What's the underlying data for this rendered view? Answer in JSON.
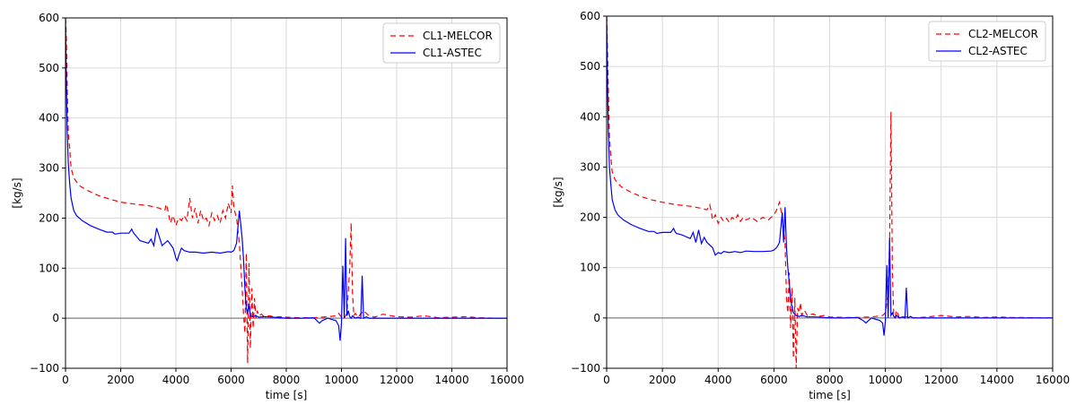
{
  "chart_data": [
    {
      "type": "line",
      "xlabel": "time [s]",
      "ylabel": "[kg/s]",
      "xlim": [
        0,
        16000
      ],
      "ylim": [
        -100,
        600
      ],
      "xticks": [
        0,
        2000,
        4000,
        6000,
        8000,
        10000,
        12000,
        14000,
        16000
      ],
      "yticks": [
        -100,
        0,
        100,
        200,
        300,
        400,
        500,
        600
      ],
      "grid": true,
      "legend_position": "top-right",
      "zero_line": true,
      "series": [
        {
          "name": "CL1-MELCOR",
          "color": "#ff0000",
          "style": "dashed",
          "x": [
            0,
            30,
            60,
            100,
            150,
            200,
            300,
            500,
            800,
            1200,
            1600,
            2000,
            2500,
            3000,
            3400,
            3600,
            3650,
            3700,
            3800,
            3900,
            4000,
            4100,
            4200,
            4300,
            4400,
            4500,
            4600,
            4700,
            4800,
            4900,
            5000,
            5100,
            5200,
            5300,
            5400,
            5500,
            5600,
            5700,
            5800,
            5900,
            6000,
            6050,
            6100,
            6200,
            6300,
            6400,
            6450,
            6500,
            6550,
            6600,
            6650,
            6700,
            6750,
            6800,
            6850,
            6900,
            6950,
            7000,
            7100,
            7200,
            7400,
            7600,
            7800,
            8000,
            8500,
            9000,
            9500,
            9800,
            9900,
            10000,
            10100,
            10200,
            10300,
            10350,
            10400,
            10450,
            10500,
            10600,
            10800,
            11000,
            11200,
            11500,
            12000,
            12500,
            13000,
            13500,
            14000,
            14500,
            15000,
            15500,
            16000
          ],
          "y": [
            600,
            560,
            470,
            370,
            340,
            300,
            280,
            265,
            255,
            245,
            238,
            232,
            228,
            225,
            220,
            215,
            228,
            218,
            190,
            205,
            185,
            200,
            195,
            205,
            195,
            240,
            200,
            220,
            190,
            215,
            195,
            200,
            185,
            210,
            195,
            205,
            190,
            215,
            200,
            230,
            210,
            265,
            220,
            200,
            150,
            60,
            10,
            -30,
            130,
            -90,
            110,
            -60,
            60,
            -20,
            40,
            0,
            15,
            5,
            8,
            3,
            5,
            2,
            3,
            2,
            1,
            1,
            3,
            5,
            10,
            2,
            0,
            10,
            100,
            190,
            50,
            5,
            10,
            2,
            15,
            5,
            2,
            8,
            3,
            2,
            5,
            1,
            2,
            3,
            1,
            0,
            0
          ]
        },
        {
          "name": "CL1-ASTEC",
          "color": "#0000ff",
          "style": "solid",
          "x": [
            0,
            30,
            60,
            100,
            150,
            200,
            300,
            400,
            600,
            900,
            1200,
            1500,
            1700,
            1800,
            2000,
            2300,
            2400,
            2450,
            2500,
            2700,
            3000,
            3100,
            3200,
            3300,
            3500,
            3700,
            3800,
            3900,
            3950,
            4000,
            4050,
            4100,
            4200,
            4300,
            4500,
            4700,
            5000,
            5300,
            5600,
            5900,
            6000,
            6100,
            6200,
            6300,
            6400,
            6450,
            6500,
            6550,
            6600,
            6650,
            6700,
            6800,
            6900,
            7000,
            7200,
            7500,
            8000,
            8500,
            9000,
            9200,
            9300,
            9500,
            9800,
            9900,
            9950,
            10000,
            10050,
            10100,
            10150,
            10200,
            10250,
            10300,
            10350,
            10400,
            10500,
            10600,
            10700,
            10750,
            10800,
            10900,
            11000,
            11500,
            12000,
            13000,
            14000,
            15000,
            16000
          ],
          "y": [
            600,
            480,
            380,
            310,
            270,
            240,
            215,
            205,
            195,
            185,
            178,
            172,
            172,
            168,
            170,
            170,
            178,
            172,
            168,
            155,
            150,
            158,
            145,
            180,
            145,
            155,
            148,
            140,
            130,
            120,
            115,
            125,
            140,
            135,
            132,
            132,
            130,
            132,
            130,
            133,
            132,
            135,
            150,
            215,
            160,
            120,
            60,
            20,
            10,
            30,
            5,
            3,
            5,
            2,
            3,
            2,
            0,
            0,
            1,
            -10,
            -5,
            0,
            -5,
            -15,
            -45,
            -10,
            105,
            0,
            160,
            5,
            15,
            3,
            0,
            5,
            0,
            2,
            0,
            85,
            0,
            3,
            0,
            0,
            0,
            0,
            0,
            0,
            0
          ]
        }
      ]
    },
    {
      "type": "line",
      "xlabel": "time [s]",
      "ylabel": "[kg/s]",
      "xlim": [
        0,
        16000
      ],
      "ylim": [
        -100,
        600
      ],
      "xticks": [
        0,
        2000,
        4000,
        6000,
        8000,
        10000,
        12000,
        14000,
        16000
      ],
      "yticks": [
        -100,
        0,
        100,
        200,
        300,
        400,
        500,
        600
      ],
      "grid": true,
      "legend_position": "top-right",
      "zero_line": true,
      "series": [
        {
          "name": "CL2-MELCOR",
          "color": "#ff0000",
          "style": "dashed",
          "x": [
            0,
            30,
            60,
            100,
            150,
            200,
            300,
            500,
            800,
            1200,
            1600,
            2000,
            2500,
            3000,
            3400,
            3600,
            3700,
            3750,
            3800,
            3900,
            4000,
            4100,
            4200,
            4300,
            4400,
            4500,
            4600,
            4700,
            4800,
            4900,
            5000,
            5200,
            5400,
            5600,
            5800,
            6000,
            6100,
            6200,
            6300,
            6400,
            6450,
            6500,
            6550,
            6600,
            6650,
            6700,
            6750,
            6800,
            6850,
            6900,
            6950,
            7000,
            7100,
            7200,
            7400,
            7600,
            7800,
            8000,
            8500,
            9000,
            9500,
            9800,
            9900,
            10000,
            10100,
            10150,
            10200,
            10250,
            10300,
            10350,
            10400,
            10500,
            10600,
            10800,
            11000,
            11500,
            12000,
            12500,
            13000,
            13500,
            14000,
            14500,
            15000,
            15500,
            16000
          ],
          "y": [
            600,
            540,
            450,
            360,
            320,
            290,
            275,
            262,
            252,
            242,
            235,
            230,
            225,
            222,
            218,
            215,
            225,
            212,
            195,
            205,
            188,
            200,
            192,
            198,
            190,
            200,
            195,
            205,
            192,
            200,
            195,
            200,
            192,
            200,
            195,
            205,
            215,
            230,
            200,
            150,
            40,
            10,
            90,
            -20,
            60,
            -80,
            40,
            -100,
            20,
            10,
            30,
            5,
            15,
            5,
            8,
            3,
            5,
            2,
            1,
            1,
            2,
            4,
            5,
            10,
            50,
            150,
            410,
            90,
            5,
            2,
            15,
            0,
            2,
            2,
            0,
            2,
            5,
            2,
            3,
            1,
            2,
            1,
            1,
            0,
            0
          ]
        },
        {
          "name": "CL2-ASTEC",
          "color": "#0000ff",
          "style": "solid",
          "x": [
            0,
            30,
            60,
            100,
            150,
            200,
            300,
            400,
            600,
            900,
            1200,
            1500,
            1700,
            1800,
            2000,
            2300,
            2400,
            2450,
            2500,
            2700,
            3000,
            3100,
            3200,
            3300,
            3400,
            3500,
            3600,
            3700,
            3800,
            3900,
            4000,
            4100,
            4200,
            4400,
            4600,
            4800,
            5000,
            5300,
            5600,
            5900,
            6000,
            6100,
            6200,
            6300,
            6350,
            6400,
            6450,
            6500,
            6550,
            6600,
            6650,
            6700,
            6800,
            6900,
            7000,
            7200,
            7500,
            8000,
            8500,
            9000,
            9200,
            9300,
            9500,
            9800,
            9900,
            9950,
            10000,
            10050,
            10100,
            10150,
            10200,
            10250,
            10300,
            10350,
            10400,
            10500,
            10600,
            10700,
            10750,
            10800,
            10900,
            11000,
            11500,
            12000,
            13000,
            14000,
            15000,
            16000
          ],
          "y": [
            600,
            470,
            370,
            300,
            265,
            235,
            215,
            205,
            195,
            185,
            178,
            172,
            172,
            168,
            170,
            170,
            178,
            172,
            168,
            165,
            158,
            170,
            150,
            175,
            148,
            160,
            150,
            145,
            140,
            125,
            130,
            128,
            132,
            130,
            132,
            130,
            133,
            132,
            132,
            133,
            135,
            140,
            150,
            210,
            150,
            220,
            140,
            100,
            70,
            40,
            20,
            10,
            5,
            3,
            5,
            2,
            2,
            0,
            0,
            1,
            -5,
            -10,
            0,
            -5,
            -10,
            -35,
            -5,
            105,
            0,
            160,
            5,
            10,
            3,
            0,
            5,
            0,
            2,
            0,
            60,
            0,
            3,
            0,
            0,
            0,
            0,
            0,
            0,
            0
          ]
        }
      ]
    }
  ]
}
